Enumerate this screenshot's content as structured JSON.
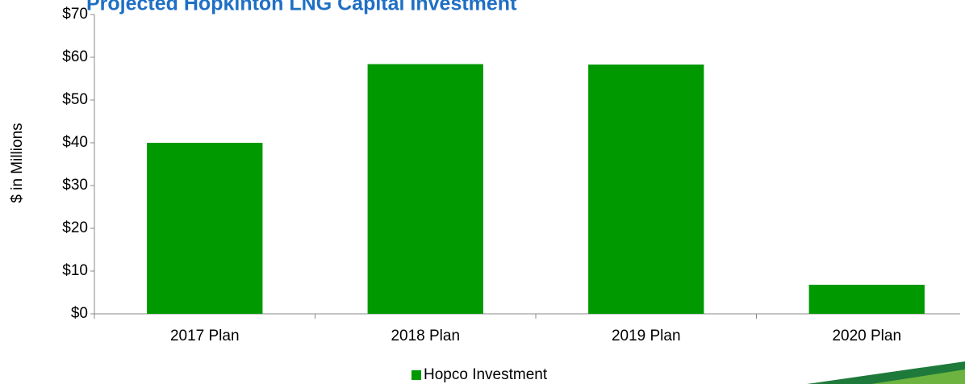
{
  "chart_data": {
    "type": "bar",
    "title": "Projected Hopkinton LNG Capital Investment",
    "y_axis_label": "$ in Millions",
    "categories": [
      "2017 Plan",
      "2018 Plan",
      "2019 Plan",
      "2020 Plan"
    ],
    "series": [
      {
        "name": "Hopco Investment",
        "color": "#009900",
        "values": [
          40.0,
          58.4,
          58.3,
          6.8
        ]
      }
    ],
    "ylim": [
      0,
      70
    ],
    "yticks": [
      {
        "value": 0,
        "label": "$0"
      },
      {
        "value": 10,
        "label": "$10"
      },
      {
        "value": 20,
        "label": "$20"
      },
      {
        "value": 30,
        "label": "$30"
      },
      {
        "value": 40,
        "label": "$40"
      },
      {
        "value": 50,
        "label": "$50"
      },
      {
        "value": 60,
        "label": "$60"
      },
      {
        "value": 70,
        "label": "$70"
      }
    ],
    "legend": "bottom"
  }
}
